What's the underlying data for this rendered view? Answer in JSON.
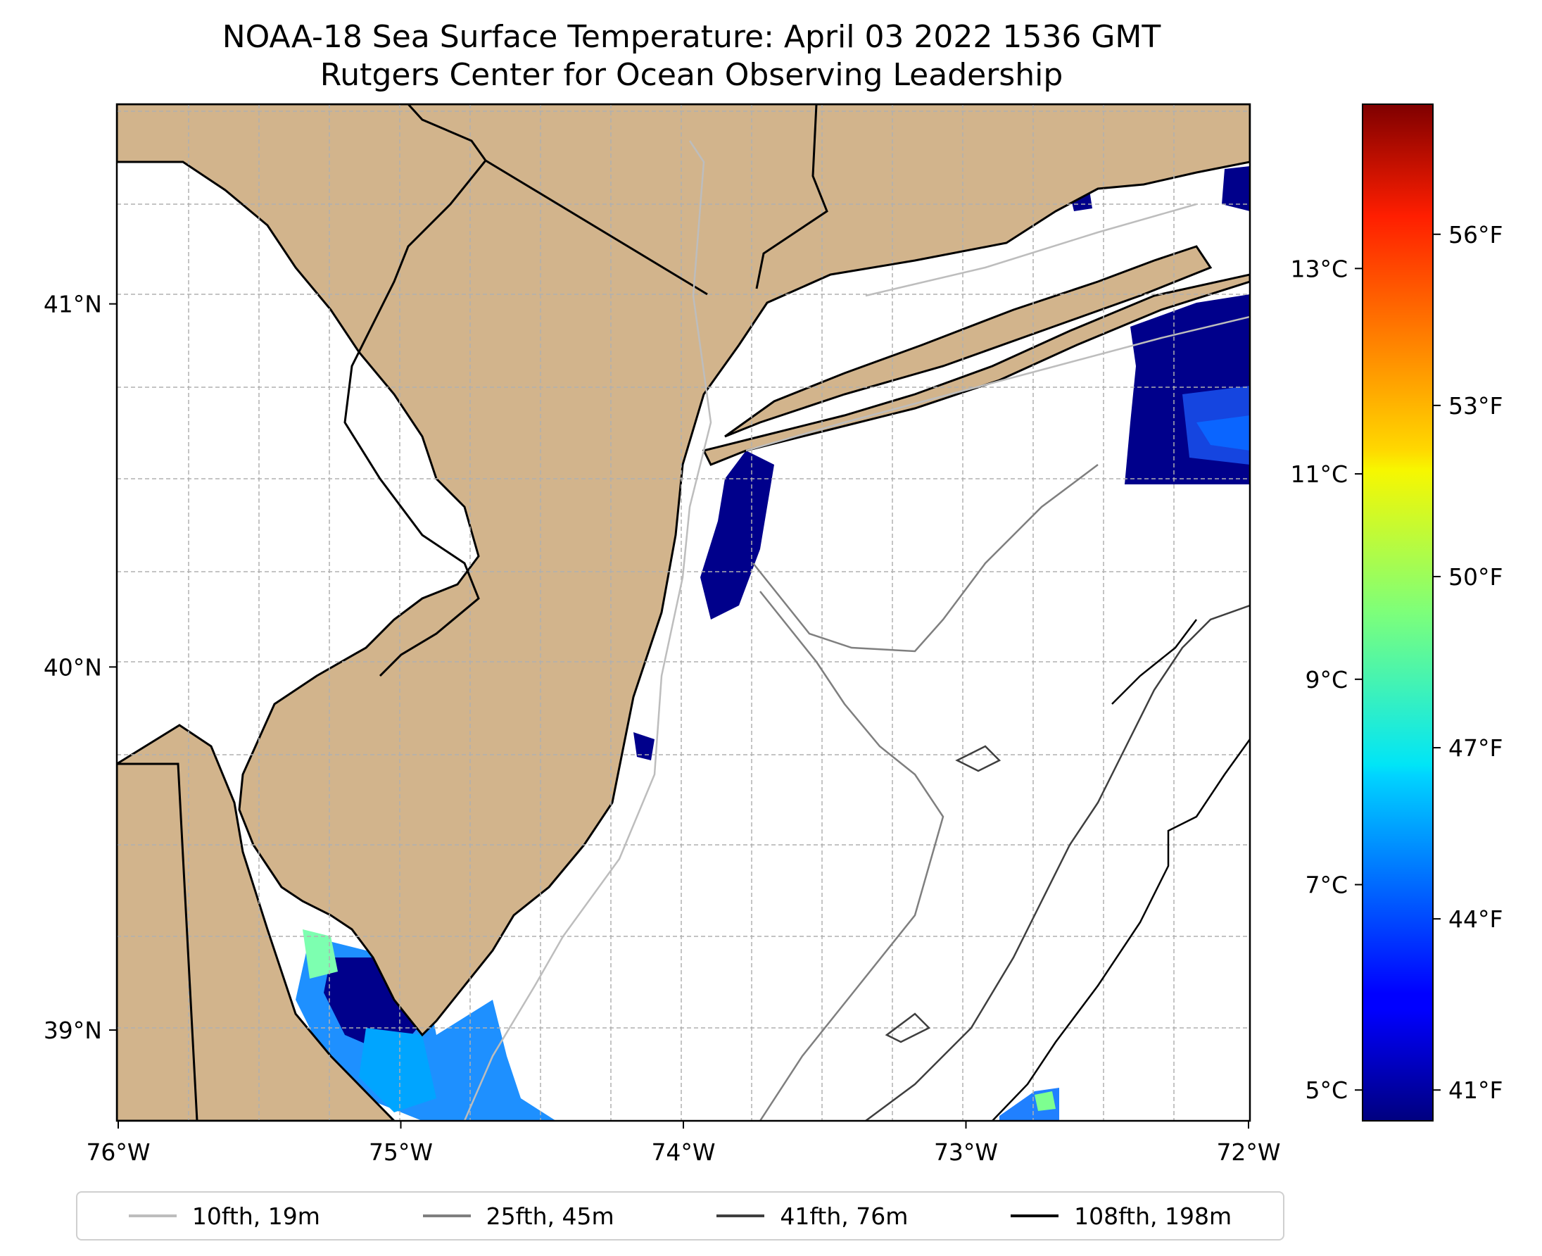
{
  "title_line1": "NOAA-18 Sea Surface Temperature: April 03 2022 1536 GMT",
  "title_line2": "Rutgers Center for Ocean Observing Leadership",
  "colors": {
    "land": "#d2b48c",
    "ocean": "#ffffff",
    "gridline": "#b0b0b0",
    "coastline": "#000000",
    "isobath_10fth": "#bdbdbd",
    "isobath_25fth": "#7f7f7f",
    "isobath_41fth": "#3f3f3f",
    "isobath_108fth": "#000000"
  },
  "map": {
    "lon_range": [
      -76,
      -72
    ],
    "lat_range": [
      38.75,
      41.55
    ],
    "x_ticks": [
      "76°W",
      "75°W",
      "74°W",
      "73°W",
      "72°W"
    ],
    "x_tick_values": [
      -76,
      -75,
      -74,
      -73,
      -72
    ],
    "y_ticks": [
      "41°N",
      "40°N",
      "39°N"
    ],
    "y_tick_values": [
      41,
      40,
      39
    ],
    "grid": true
  },
  "colorbar": {
    "colormap": "jet",
    "min_c": 4.7,
    "max_c": 14.6,
    "celsius_ticks": [
      "5°C",
      "7°C",
      "9°C",
      "11°C",
      "13°C"
    ],
    "celsius_values": [
      5,
      7,
      9,
      11,
      13
    ],
    "fahrenheit_ticks": [
      "41°F",
      "44°F",
      "47°F",
      "50°F",
      "53°F",
      "56°F"
    ],
    "fahrenheit_values": [
      41,
      44,
      47,
      50,
      53,
      56
    ]
  },
  "legend": [
    {
      "label": "10fth, 19m",
      "color": "#bdbdbd"
    },
    {
      "label": "25fth, 45m",
      "color": "#7f7f7f"
    },
    {
      "label": "41fth, 76m",
      "color": "#3f3f3f"
    },
    {
      "label": "108fth, 198m",
      "color": "#000000"
    }
  ]
}
